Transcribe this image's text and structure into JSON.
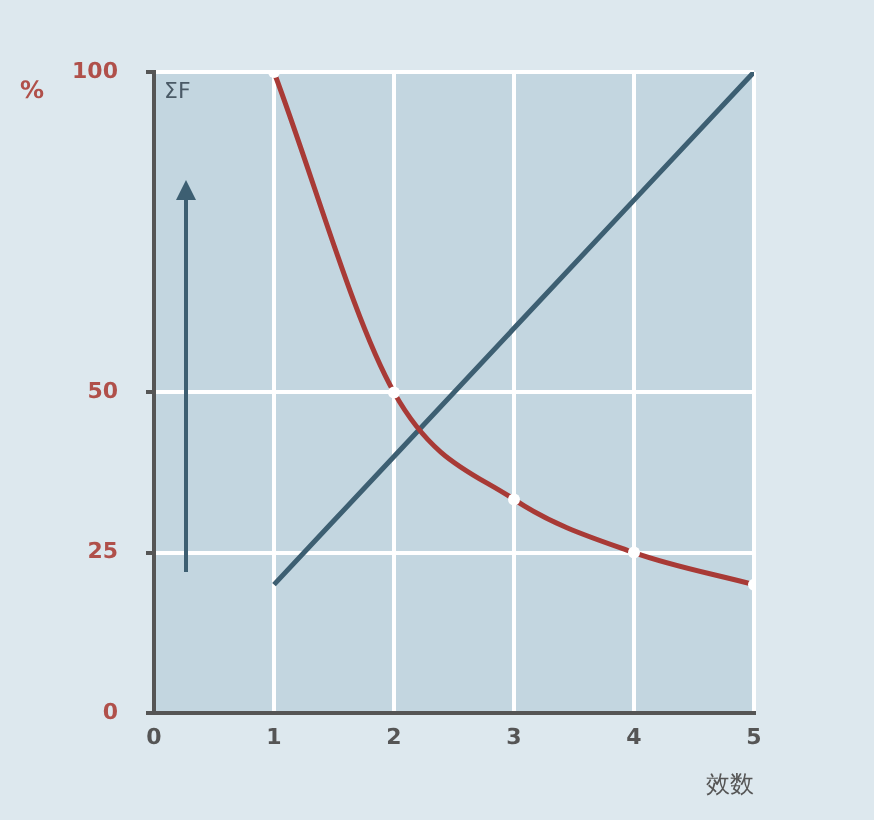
{
  "chart_data": {
    "type": "line",
    "ylabel": "%",
    "xlabel": "效数",
    "annotations": [
      "ΣF"
    ],
    "x": [
      1,
      2,
      3,
      4,
      5
    ],
    "xlim": [
      0,
      5
    ],
    "xticks": [
      0,
      1,
      2,
      3,
      4,
      5
    ],
    "ylim": [
      0,
      100
    ],
    "yticks": [
      0,
      25,
      50,
      100
    ],
    "grid": true,
    "series": [
      {
        "color": "#a83a36",
        "values": [
          100,
          50,
          33.3,
          25,
          20
        ],
        "marker": "circle"
      },
      {
        "color": "#3d5f72",
        "values": [
          20,
          40,
          60,
          80,
          100
        ],
        "marker": "none"
      }
    ]
  }
}
